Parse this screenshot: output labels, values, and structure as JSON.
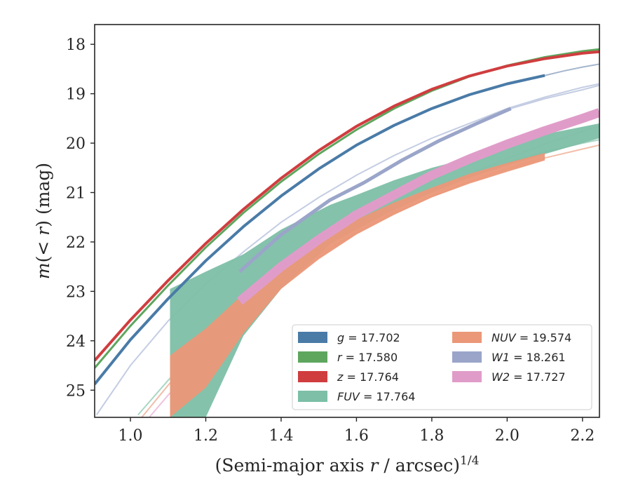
{
  "chart_data": {
    "type": "line",
    "xlabel_main": "(Semi-major axis ",
    "xlabel_var": "r",
    "xlabel_unit": " / arcsec)",
    "xlabel_exp": "1/4",
    "ylabel_pre": "m",
    "ylabel_mid": "(< ",
    "ylabel_var": "r",
    "ylabel_post": ") (mag)",
    "xlim": [
      0.905,
      2.245
    ],
    "ylim": [
      25.55,
      17.6
    ],
    "y_inverted": true,
    "xticks": [
      1.0,
      1.2,
      1.4,
      1.6,
      1.8,
      2.0,
      2.2
    ],
    "xtick_labels": [
      "1.0",
      "1.2",
      "1.4",
      "1.6",
      "1.8",
      "2.0",
      "2.2"
    ],
    "yticks": [
      18,
      19,
      20,
      21,
      22,
      23,
      24,
      25
    ],
    "ytick_labels": [
      "18",
      "19",
      "20",
      "21",
      "22",
      "23",
      "24",
      "25"
    ],
    "legend_position": "lower-right",
    "series": [
      {
        "key": "z",
        "name_var": "z",
        "name_val": " = 17.764",
        "color": "#d03d3f",
        "kind": "line",
        "width": 4,
        "x": [
          0.905,
          1.0,
          1.1,
          1.2,
          1.3,
          1.4,
          1.5,
          1.6,
          1.7,
          1.8,
          1.9,
          2.0,
          2.1,
          2.2,
          2.245
        ],
        "y": [
          24.4,
          23.58,
          22.78,
          22.03,
          21.34,
          20.71,
          20.15,
          19.66,
          19.25,
          18.91,
          18.64,
          18.44,
          18.29,
          18.18,
          18.15
        ]
      },
      {
        "key": "r",
        "name_var": "r",
        "name_val": " = 17.580",
        "color": "#5ea65e",
        "kind": "line",
        "width": 3,
        "x": [
          0.905,
          1.0,
          1.1,
          1.2,
          1.3,
          1.4,
          1.5,
          1.6,
          1.7,
          1.8,
          1.9,
          2.0,
          2.1,
          2.2,
          2.245
        ],
        "y": [
          24.55,
          23.7,
          22.88,
          22.11,
          21.41,
          20.78,
          20.22,
          19.73,
          19.3,
          18.94,
          18.65,
          18.43,
          18.26,
          18.14,
          18.1
        ]
      },
      {
        "key": "g",
        "name_var": "g",
        "name_val": " = 17.702",
        "color": "#4a7ba7",
        "kind": "line",
        "width": 4,
        "x": [
          0.905,
          1.0,
          1.1,
          1.2,
          1.3,
          1.4,
          1.5,
          1.6,
          1.7,
          1.8,
          1.9,
          2.0,
          2.1
        ],
        "y": [
          24.88,
          23.98,
          23.15,
          22.38,
          21.69,
          21.07,
          20.52,
          20.04,
          19.64,
          19.3,
          19.02,
          18.8,
          18.63
        ]
      },
      {
        "key": "W1",
        "name_var": "W1",
        "name_val": " = 18.261",
        "color": "#9aa5c9",
        "kind": "line",
        "width": 5,
        "x": [
          1.29,
          1.4,
          1.53,
          1.62,
          1.72,
          1.82,
          1.92,
          2.01
        ],
        "y": [
          22.6,
          21.85,
          21.15,
          20.8,
          20.35,
          19.95,
          19.6,
          19.3
        ]
      },
      {
        "key": "FUV",
        "name_var": "FUV",
        "name_val": " = 17.764",
        "color": "#7dbfa7",
        "kind": "band",
        "x": [
          1.105,
          1.2,
          1.3,
          1.4,
          1.53,
          1.6,
          1.7,
          1.8,
          1.9,
          2.0,
          2.1,
          2.245
        ],
        "y_upper": [
          22.95,
          22.6,
          22.25,
          21.75,
          21.25,
          21.05,
          20.75,
          20.5,
          20.3,
          20.05,
          19.82,
          19.6
        ],
        "y_lower": [
          25.55,
          25.55,
          23.9,
          22.95,
          22.05,
          21.75,
          21.35,
          21.0,
          20.7,
          20.45,
          20.22,
          19.9
        ]
      },
      {
        "key": "NUV",
        "name_var": "NUV",
        "name_val": " = 19.574",
        "color": "#eb9878",
        "kind": "band",
        "x": [
          1.105,
          1.2,
          1.3,
          1.4,
          1.5,
          1.6,
          1.7,
          1.8,
          1.9,
          2.0,
          2.1
        ],
        "y_upper": [
          24.3,
          23.75,
          23.05,
          22.4,
          21.95,
          21.55,
          21.2,
          20.9,
          20.62,
          20.4,
          20.2
        ],
        "y_lower": [
          25.55,
          24.95,
          23.85,
          22.95,
          22.35,
          21.85,
          21.45,
          21.1,
          20.82,
          20.58,
          20.35
        ]
      },
      {
        "key": "W2",
        "name_var": "W2",
        "name_val": " = 17.727",
        "color": "#e09cc9",
        "kind": "line",
        "width": 13,
        "x": [
          1.29,
          1.4,
          1.5,
          1.6,
          1.7,
          1.8,
          1.9,
          2.0,
          2.1,
          2.2,
          2.245
        ],
        "y": [
          23.2,
          22.5,
          21.95,
          21.45,
          21.05,
          20.65,
          20.32,
          20.02,
          19.75,
          19.5,
          19.38
        ]
      }
    ],
    "faint_curves": [
      {
        "color": "#c4cde3",
        "x": [
          0.91,
          1.0,
          1.1,
          1.2,
          1.3,
          1.4,
          1.5,
          1.6,
          1.7,
          1.8,
          1.9,
          2.0,
          2.1,
          2.2,
          2.245
        ],
        "y": [
          25.5,
          24.5,
          23.6,
          22.85,
          22.2,
          21.6,
          21.1,
          20.65,
          20.25,
          19.9,
          19.6,
          19.3,
          19.07,
          18.87,
          18.8
        ]
      },
      {
        "color": "#a9d6c5",
        "x": [
          1.02,
          1.1,
          1.2,
          1.3,
          1.4,
          1.5,
          1.6,
          1.7,
          1.8,
          1.9,
          2.0,
          2.1,
          2.2,
          2.245
        ],
        "y": [
          25.5,
          24.8,
          24.0,
          23.3,
          22.7,
          22.15,
          21.7,
          21.3,
          20.95,
          20.65,
          20.4,
          20.18,
          20.0,
          19.93
        ]
      },
      {
        "color": "#f2bea9",
        "x": [
          1.03,
          1.1,
          1.2,
          1.3,
          1.4,
          1.5,
          1.6,
          1.7,
          1.8,
          1.9,
          2.0,
          2.1,
          2.2,
          2.245
        ],
        "y": [
          25.55,
          24.9,
          24.1,
          23.4,
          22.78,
          22.25,
          21.8,
          21.42,
          21.08,
          20.78,
          20.52,
          20.3,
          20.12,
          20.04
        ]
      },
      {
        "color": "#efc3df",
        "x": [
          1.05,
          1.1,
          1.2,
          1.3,
          1.4,
          1.5,
          1.6,
          1.7,
          1.8,
          1.9,
          2.0,
          2.1,
          2.2,
          2.245
        ],
        "y": [
          25.55,
          25.1,
          24.3,
          23.55,
          22.9,
          22.3,
          21.82,
          21.38,
          20.98,
          20.63,
          20.31,
          20.02,
          19.76,
          19.65
        ]
      },
      {
        "color": "#a5b6cd",
        "x": [
          2.1,
          2.15,
          2.2,
          2.245
        ],
        "y": [
          18.63,
          18.54,
          18.46,
          18.4
        ]
      },
      {
        "color": "#c4cde3",
        "x": [
          2.01,
          2.1,
          2.2,
          2.245
        ],
        "y": [
          19.3,
          19.1,
          18.92,
          18.83
        ]
      }
    ]
  }
}
